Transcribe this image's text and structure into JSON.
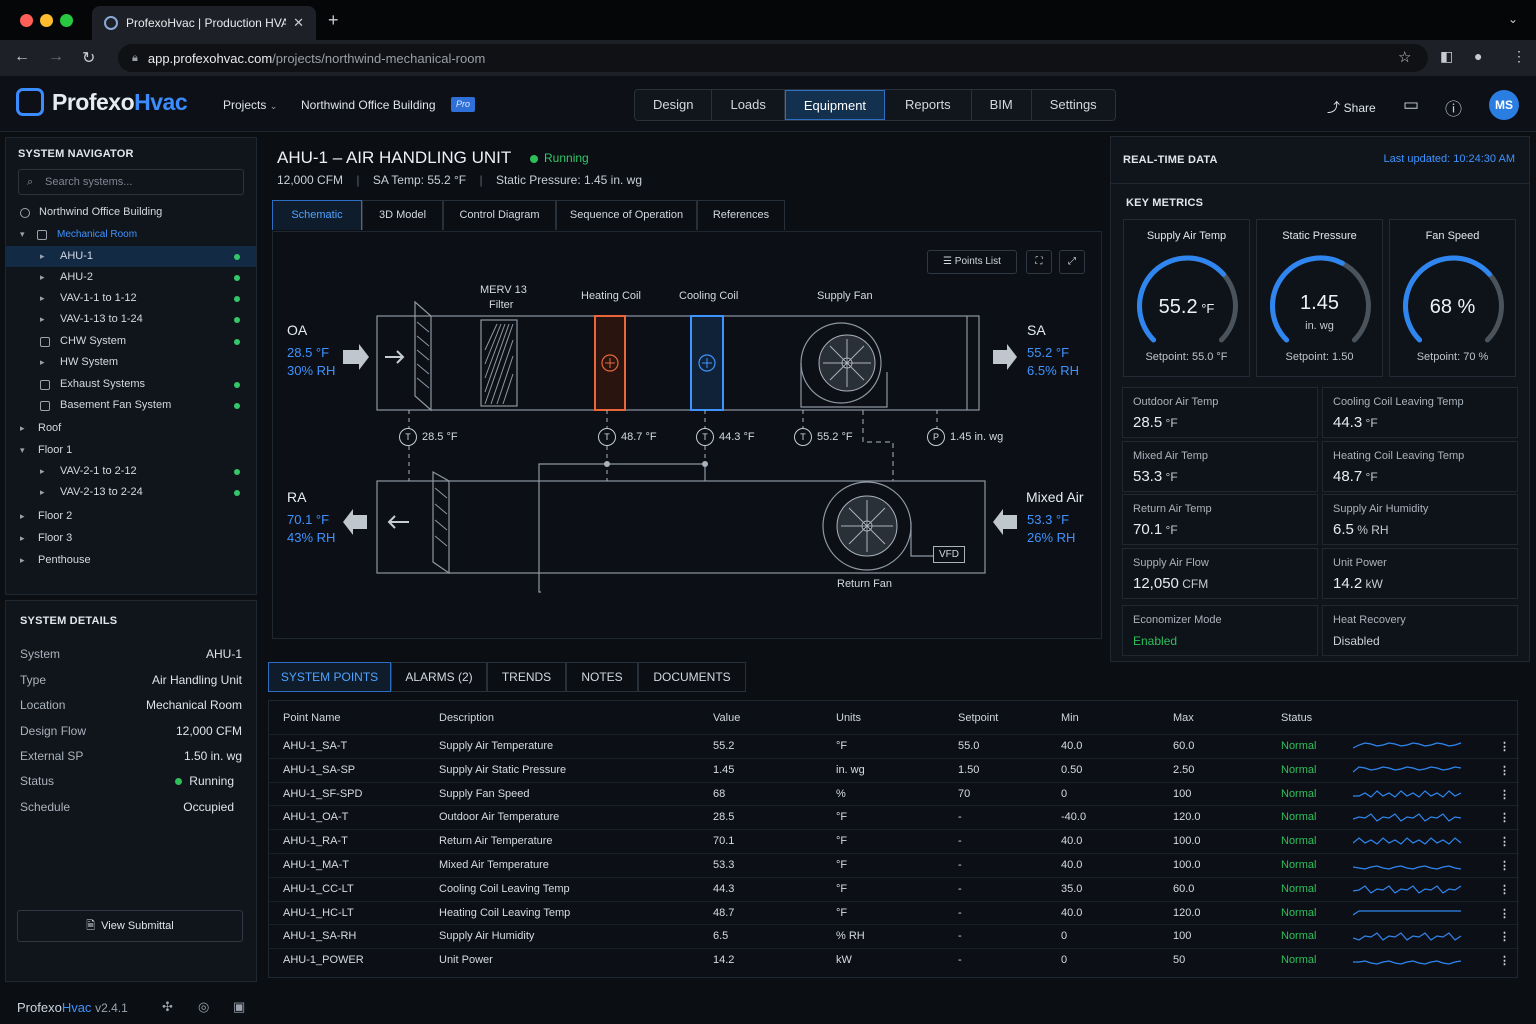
{
  "browser": {
    "tab_title": "ProfexoHvac | Production HVAC",
    "url_host": "app.profexohvac.com",
    "url_path": "/projects/northwind-mechanical-room"
  },
  "header": {
    "logo_main": "Profexo",
    "logo_accent": "Hvac",
    "projects_label": "Projects",
    "project_name": "Northwind Office Building",
    "badge": "Pro",
    "nav": [
      "Design",
      "Loads",
      "Equipment",
      "Reports",
      "BIM",
      "Settings"
    ],
    "active_nav": "Equipment",
    "share_label": "Share",
    "avatar_initials": "MS",
    "accent_color": "#3b8cff"
  },
  "navigator": {
    "title": "SYSTEM NAVIGATOR",
    "search_placeholder": "Search systems...",
    "items": [
      {
        "label": "Northwind Office Building",
        "level": 0,
        "caret": "",
        "icon": "building-icon",
        "status": ""
      },
      {
        "label": "Mechanical Room",
        "level": 1,
        "caret": "down",
        "icon": "room-icon",
        "status": "",
        "highlight": true
      },
      {
        "label": "AHU-1",
        "level": 2,
        "caret": "right",
        "icon": "",
        "status": "ok",
        "selected": true
      },
      {
        "label": "AHU-2",
        "level": 2,
        "caret": "right",
        "icon": "",
        "status": "ok"
      },
      {
        "label": "VAV-1-1 to 1-12",
        "level": 2,
        "caret": "right",
        "icon": "",
        "status": "ok"
      },
      {
        "label": "VAV-1-13 to 1-24",
        "level": 2,
        "caret": "right",
        "icon": "",
        "status": "ok"
      },
      {
        "label": "CHW System",
        "level": 2,
        "caret": "",
        "icon": "chw-icon",
        "status": "ok"
      },
      {
        "label": "HW System",
        "level": 2,
        "caret": "right",
        "icon": "",
        "status": ""
      },
      {
        "label": "Exhaust Systems",
        "level": 2,
        "caret": "",
        "icon": "exhaust-icon",
        "status": "ok"
      },
      {
        "label": "Basement Fan System",
        "level": 2,
        "caret": "",
        "icon": "fan-icon",
        "status": "ok"
      },
      {
        "label": "Roof",
        "level": 0,
        "caret": "right",
        "icon": "",
        "status": ""
      },
      {
        "label": "Floor 1",
        "level": 0,
        "caret": "down",
        "icon": "",
        "status": ""
      },
      {
        "label": "VAV-2-1 to 2-12",
        "level": 2,
        "caret": "right",
        "icon": "",
        "status": "ok"
      },
      {
        "label": "VAV-2-13 to 2-24",
        "level": 2,
        "caret": "right",
        "icon": "",
        "status": "ok"
      },
      {
        "label": "Floor 2",
        "level": 0,
        "caret": "right",
        "icon": "",
        "status": ""
      },
      {
        "label": "Floor 3",
        "level": 0,
        "caret": "right",
        "icon": "",
        "status": ""
      },
      {
        "label": "Penthouse",
        "level": 0,
        "caret": "right",
        "icon": "",
        "status": ""
      }
    ]
  },
  "details": {
    "title": "SYSTEM DETAILS",
    "rows": [
      {
        "k": "System",
        "v": "AHU-1"
      },
      {
        "k": "Type",
        "v": "Air Handling Unit"
      },
      {
        "k": "Location",
        "v": "Mechanical Room"
      },
      {
        "k": "Design Flow",
        "v": "12,000 CFM"
      },
      {
        "k": "External SP",
        "v": "1.50 in. wg"
      },
      {
        "k": "Status",
        "v": "Running"
      },
      {
        "k": "Schedule",
        "v": "Occupied"
      }
    ],
    "button": "View Submittal"
  },
  "equipment": {
    "title": "AHU-1 – AIR HANDLING UNIT",
    "status": "Running",
    "cfm": "12,000 CFM",
    "sa_temp": "SA Temp: 55.2 °F",
    "static": "Static Pressure: 1.45 in. wg",
    "tabs": [
      "Schematic",
      "3D Model",
      "Control Diagram",
      "Sequence of Operation",
      "References"
    ],
    "points_list": "Points List"
  },
  "schematic": {
    "components": {
      "filter": "MERV 13",
      "filter2": "Filter",
      "heating": "Heating Coil",
      "cooling": "Cooling Coil",
      "supply_fan": "Supply Fan",
      "return_fan": "Return Fan",
      "vfd": "VFD"
    },
    "oa": {
      "label": "OA",
      "temp": "28.5 °F",
      "rh": "30% RH"
    },
    "sa": {
      "label": "SA",
      "temp": "55.2 °F",
      "rh": "6.5% RH"
    },
    "ra": {
      "label": "RA",
      "temp": "70.1 °F",
      "rh": "43% RH"
    },
    "ma": {
      "label": "Mixed Air",
      "temp": "53.3 °F",
      "rh": "26% RH"
    },
    "sensors": [
      {
        "type": "T",
        "value": "28.5 °F"
      },
      {
        "type": "T",
        "value": "48.7 °F"
      },
      {
        "type": "T",
        "value": "44.3 °F"
      },
      {
        "type": "T",
        "value": "55.2 °F"
      },
      {
        "type": "P",
        "value": "1.45 in. wg"
      }
    ]
  },
  "realtime": {
    "title": "REAL-TIME DATA",
    "updated": "Last updated: 10:24:30 AM",
    "key_metrics": "KEY METRICS",
    "gauges": [
      {
        "title": "Supply Air Temp",
        "value": "55.2",
        "unit": "°F",
        "setpoint": "Setpoint: 55.0 °F",
        "fraction": 0.68
      },
      {
        "title": "Static Pressure",
        "value": "1.45",
        "unit": "in. wg",
        "setpoint": "Setpoint: 1.50",
        "fraction": 0.6
      },
      {
        "title": "Fan Speed",
        "value": "68",
        "unit": "%",
        "setpoint": "Setpoint: 70 %",
        "fraction": 0.68
      }
    ],
    "metrics": [
      {
        "k": "Outdoor Air Temp",
        "v": "28.5",
        "u": "°F"
      },
      {
        "k": "Cooling Coil Leaving Temp",
        "v": "44.3",
        "u": "°F"
      },
      {
        "k": "Mixed Air Temp",
        "v": "53.3",
        "u": "°F"
      },
      {
        "k": "Heating Coil Leaving Temp",
        "v": "48.7",
        "u": "°F"
      },
      {
        "k": "Return Air Temp",
        "v": "70.1",
        "u": "°F"
      },
      {
        "k": "Supply Air Humidity",
        "v": "6.5",
        "u": "% RH"
      },
      {
        "k": "Supply Air Flow",
        "v": "12,050",
        "u": "CFM"
      },
      {
        "k": "Unit Power",
        "v": "14.2",
        "u": "kW"
      }
    ],
    "economizer": {
      "k": "Economizer Mode",
      "v": "Enabled"
    },
    "heat_recovery": {
      "k": "Heat Recovery",
      "v": "Disabled"
    }
  },
  "points": {
    "tabs": [
      "SYSTEM POINTS",
      "ALARMS (2)",
      "TRENDS",
      "NOTES",
      "DOCUMENTS"
    ],
    "headers": [
      "Point Name",
      "Description",
      "Value",
      "Units",
      "Setpoint",
      "Min",
      "Max",
      "Status"
    ],
    "rows": [
      [
        "AHU-1_SA-T",
        "Supply Air Temperature",
        "55.2",
        "°F",
        "55.0",
        "40.0",
        "60.0",
        "Normal"
      ],
      [
        "AHU-1_SA-SP",
        "Supply Air Static Pressure",
        "1.45",
        "in. wg",
        "1.50",
        "0.50",
        "2.50",
        "Normal"
      ],
      [
        "AHU-1_SF-SPD",
        "Supply Fan Speed",
        "68",
        "%",
        "70",
        "0",
        "100",
        "Normal"
      ],
      [
        "AHU-1_OA-T",
        "Outdoor Air Temperature",
        "28.5",
        "°F",
        "-",
        "-40.0",
        "120.0",
        "Normal"
      ],
      [
        "AHU-1_RA-T",
        "Return Air Temperature",
        "70.1",
        "°F",
        "-",
        "40.0",
        "100.0",
        "Normal"
      ],
      [
        "AHU-1_MA-T",
        "Mixed Air Temperature",
        "53.3",
        "°F",
        "-",
        "40.0",
        "100.0",
        "Normal"
      ],
      [
        "AHU-1_CC-LT",
        "Cooling Coil Leaving Temp",
        "44.3",
        "°F",
        "-",
        "35.0",
        "60.0",
        "Normal"
      ],
      [
        "AHU-1_HC-LT",
        "Heating Coil Leaving Temp",
        "48.7",
        "°F",
        "-",
        "40.0",
        "120.0",
        "Normal"
      ],
      [
        "AHU-1_SA-RH",
        "Supply Air Humidity",
        "6.5",
        "% RH",
        "-",
        "0",
        "100",
        "Normal"
      ],
      [
        "AHU-1_POWER",
        "Unit Power",
        "14.2",
        "kW",
        "-",
        "0",
        "50",
        "Normal"
      ]
    ]
  },
  "footer": {
    "brand": "Profexo",
    "brand_accent": "Hvac",
    "version": "v2.4.1"
  }
}
